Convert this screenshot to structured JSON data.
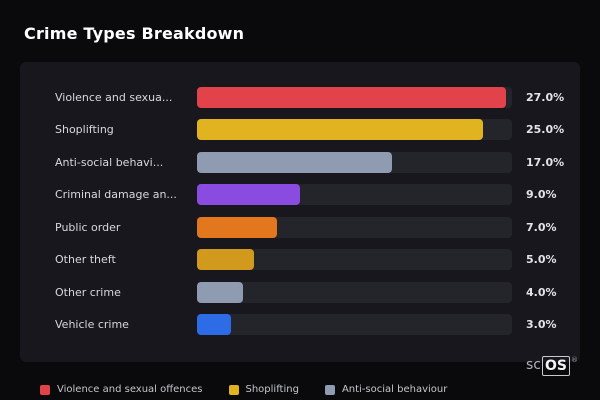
{
  "title": "Crime Types Breakdown",
  "chart_data": {
    "type": "bar",
    "orientation": "horizontal",
    "title": "Crime Types Breakdown",
    "axis_max": 27.5,
    "grid": false,
    "categories": [
      "Violence and sexua...",
      "Shoplifting",
      "Anti-social behavi...",
      "Criminal damage an...",
      "Public order",
      "Other theft",
      "Other crime",
      "Vehicle crime"
    ],
    "values": [
      27.0,
      25.0,
      17.0,
      9.0,
      7.0,
      5.0,
      4.0,
      3.0
    ],
    "value_labels": [
      "27.0%",
      "25.0%",
      "17.0%",
      "9.0%",
      "7.0%",
      "5.0%",
      "4.0%",
      "3.0%"
    ],
    "bar_colors": [
      "#e2434a",
      "#e2b320",
      "#8e9bb1",
      "#8a4be0",
      "#e2771e",
      "#d29a1c",
      "#8e9bb1",
      "#2e6be6"
    ],
    "track_color": "#24242b"
  },
  "legend": {
    "items": [
      {
        "label": "Violence and sexual offences",
        "color": "#e2434a"
      },
      {
        "label": "Shoplifting",
        "color": "#e2b320"
      },
      {
        "label": "Anti-social behaviour",
        "color": "#8e9bb1"
      }
    ]
  },
  "watermark": {
    "prefix": "sc",
    "boxed": "OS",
    "registered": "®"
  }
}
